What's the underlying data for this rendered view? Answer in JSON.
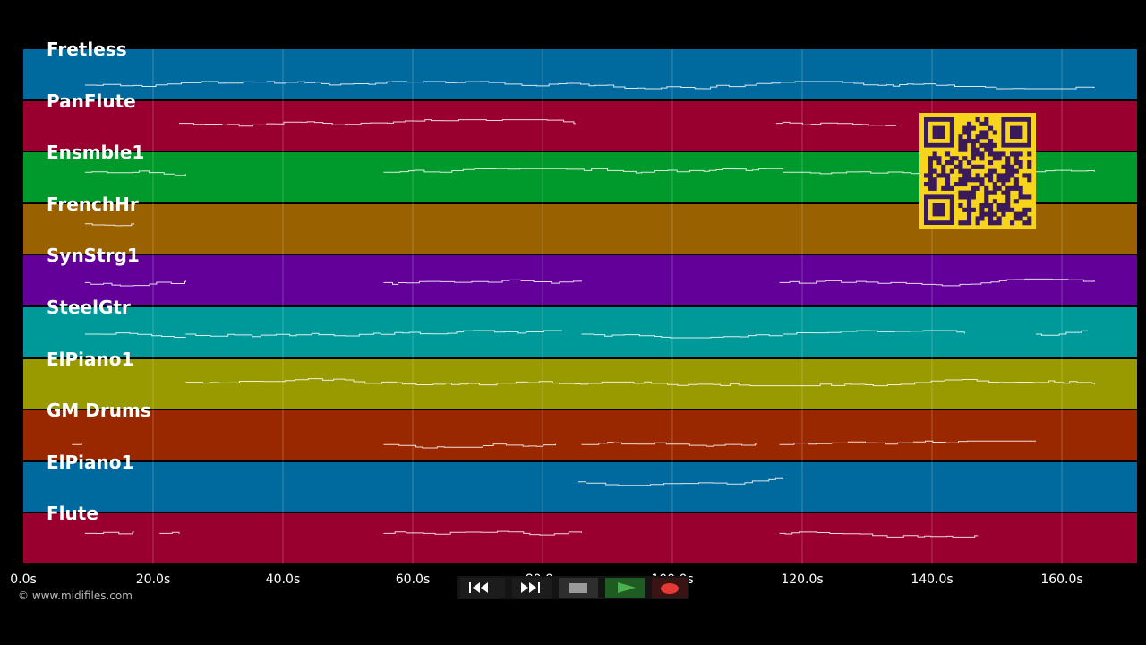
{
  "tracks": [
    {
      "name": "Fretless",
      "color": "#00699e"
    },
    {
      "name": "PanFlute",
      "color": "#99002f"
    },
    {
      "name": "Ensmble1",
      "color": "#00992c"
    },
    {
      "name": "FrenchHr",
      "color": "#996100"
    },
    {
      "name": "SynStrg1",
      "color": "#620099"
    },
    {
      "name": "SteelGtr",
      "color": "#009999"
    },
    {
      "name": "ElPiano1",
      "color": "#999900"
    },
    {
      "name": "GM Drums",
      "color": "#992800"
    },
    {
      "name": "ElPiano1",
      "color": "#00699e"
    },
    {
      "name": "Flute",
      "color": "#99002f"
    }
  ],
  "timeline": {
    "ticks": [
      "0.0s",
      "20.0s",
      "40.0s",
      "60.0s",
      "80.0s",
      "100.0s",
      "120.0s",
      "140.0s",
      "160.0s"
    ],
    "duration_s": 171.6
  },
  "copyright": "© www.midifiles.com",
  "controls": {
    "rewind_icon": "rewind-icon",
    "fast_forward_icon": "fast-forward-icon",
    "stop_icon": "stop-icon",
    "play_icon": "play-icon",
    "record_icon": "record-icon",
    "play_color": "#4caf50",
    "record_color": "#e53935"
  },
  "qr_code": {
    "color": "#f7d51d",
    "fg": "#3a1a5a"
  }
}
